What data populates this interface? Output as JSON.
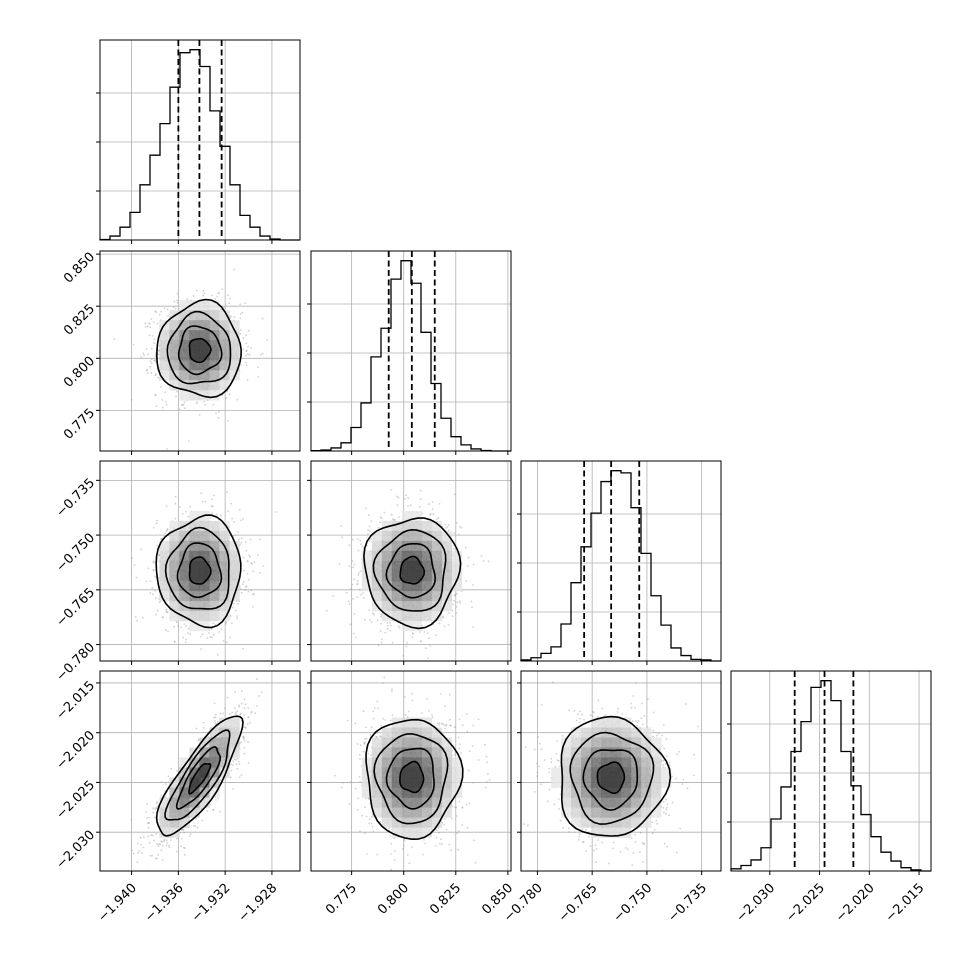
{
  "chart_data": {
    "type": "corner",
    "title": "",
    "parameters": [
      {
        "label": "",
        "range": [
          -1.9427,
          -1.9256
        ],
        "ticks": [
          -1.94,
          -1.936,
          -1.932,
          -1.928
        ],
        "tick_labels": [
          "−1.940",
          "−1.936",
          "−1.932",
          "−1.928"
        ],
        "quantiles": [
          -1.936,
          -1.9342,
          -1.9323
        ],
        "hist": [
          0.5,
          4,
          13,
          28,
          56,
          86,
          118,
          155,
          190,
          193,
          176,
          131,
          95,
          56,
          25,
          13,
          4,
          1,
          0,
          0
        ]
      },
      {
        "label": "",
        "range": [
          0.7555,
          0.8515
        ],
        "ticks": [
          0.775,
          0.8,
          0.825,
          0.85
        ],
        "tick_labels": [
          "0.775",
          "0.800",
          "0.825",
          "0.850"
        ],
        "quantiles": [
          0.7928,
          0.8039,
          0.8149
        ],
        "hist": [
          0.4,
          1,
          3,
          8,
          23,
          47,
          92,
          120,
          168,
          186,
          164,
          116,
          66,
          32,
          14,
          6,
          2,
          0.5,
          0,
          0
        ]
      },
      {
        "label": "",
        "range": [
          -0.7845,
          -0.7297
        ],
        "ticks": [
          -0.78,
          -0.765,
          -0.75,
          -0.735
        ],
        "tick_labels": [
          "−0.780",
          "−0.765",
          "−0.750",
          "−0.735"
        ],
        "quantiles": [
          -0.7672,
          -0.7598,
          -0.7521
        ],
        "hist": [
          1,
          3,
          7,
          13,
          34,
          72,
          105,
          136,
          165,
          175,
          173,
          141,
          99,
          60,
          33,
          12,
          5,
          1.5,
          1,
          0
        ]
      },
      {
        "label": "",
        "range": [
          -2.0339,
          -2.0138
        ],
        "ticks": [
          -2.03,
          -2.025,
          -2.02,
          -2.015
        ],
        "tick_labels": [
          "−2.030",
          "−2.025",
          "−2.020",
          "−2.015"
        ],
        "quantiles": [
          -2.0275,
          -2.0245,
          -2.0216
        ],
        "hist": [
          2,
          5,
          10,
          21,
          47,
          76,
          108,
          135,
          166,
          172,
          154,
          108,
          77,
          51,
          31,
          17,
          9,
          3,
          1,
          0
        ]
      }
    ],
    "pairs": [
      {
        "x": 0,
        "y": 1,
        "mean": [
          -1.9342,
          0.8039
        ],
        "sd": [
          0.0018,
          0.0113
        ],
        "rho": 0.0
      },
      {
        "x": 0,
        "y": 2,
        "mean": [
          -1.9342,
          -0.7598
        ],
        "sd": [
          0.0018,
          0.0074
        ],
        "rho": 0.0
      },
      {
        "x": 1,
        "y": 2,
        "mean": [
          0.8039,
          -0.7598
        ],
        "sd": [
          0.0113,
          0.0074
        ],
        "rho": 0.0
      },
      {
        "x": 0,
        "y": 3,
        "mean": [
          -1.9342,
          -2.0245
        ],
        "sd": [
          0.0018,
          0.003
        ],
        "rho": 0.82
      },
      {
        "x": 1,
        "y": 3,
        "mean": [
          0.8039,
          -2.0245
        ],
        "sd": [
          0.0113,
          0.003
        ],
        "rho": 0.0
      },
      {
        "x": 2,
        "y": 3,
        "mean": [
          -0.7598,
          -2.0245
        ],
        "sd": [
          0.0074,
          0.003
        ],
        "rho": 0.0
      }
    ],
    "contour_levels_sigma": [
      0.5,
      1.0,
      1.5,
      2.0
    ],
    "grid": true,
    "legend": "none",
    "colors": {
      "points": "#9a9a9a",
      "hist_line": "#000000",
      "quantile_line": "#000000",
      "grid": "#b0b0b0"
    }
  }
}
